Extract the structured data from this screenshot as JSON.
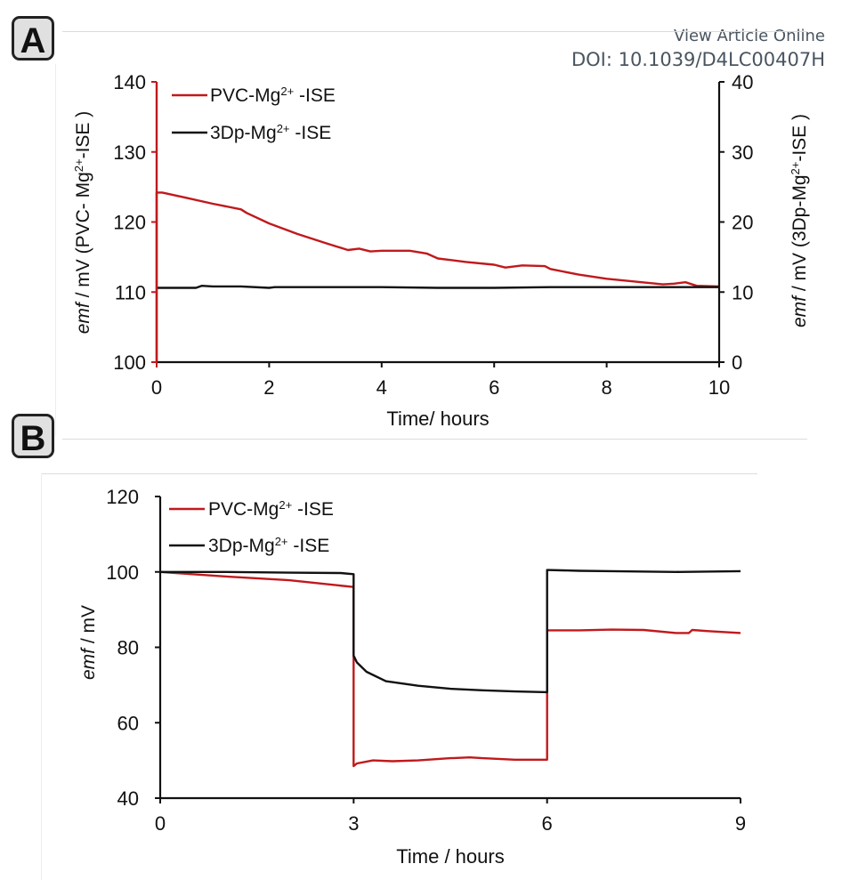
{
  "header": {
    "view_article": "View Article Online",
    "doi": "DOI: 10.1039/D4LC00407H"
  },
  "panels": {
    "a_label": "A",
    "b_label": "B"
  },
  "colors": {
    "pvc": "#c0191c",
    "dp3": "#111111",
    "doi_text": "#4a5560"
  },
  "chart_data": [
    {
      "type": "line",
      "panel": "A",
      "xlabel": "Time/ hours",
      "ylabel_left": "emf / mV (PVC- Mg2+-ISE )",
      "ylabel_left_parts": {
        "italic": "emf",
        "pre": " / mV (PVC- Mg",
        "sup": "2+",
        "post": "-ISE )"
      },
      "ylabel_right": "emf / mV (3Dp-Mg2+-ISE )",
      "ylabel_right_parts": {
        "italic": "emf",
        "pre": " / mV (3Dp-Mg",
        "sup": "2+",
        "post": "-ISE )"
      },
      "xlim": [
        0,
        10
      ],
      "ylim_left": [
        100,
        140
      ],
      "ylim_right": [
        0,
        40
      ],
      "x_ticks": [
        "0",
        "2",
        "4",
        "6",
        "8",
        "10"
      ],
      "y_ticks_left": [
        "100",
        "110",
        "120",
        "130",
        "140"
      ],
      "y_ticks_right": [
        "0",
        "10",
        "20",
        "30",
        "40"
      ],
      "legend": [
        {
          "name": "PVC-Mg2+-ISE",
          "pre": "PVC-Mg",
          "sup": "2+",
          "post": " -ISE"
        },
        {
          "name": "3Dp-Mg2+-ISE",
          "pre": "3Dp-Mg",
          "sup": "2+",
          "post": " -ISE"
        }
      ],
      "legend_position": "top-left",
      "grid": false,
      "series": [
        {
          "name": "PVC-Mg2+-ISE",
          "axis": "left",
          "x": [
            0,
            0,
            0.1,
            0.5,
            1.0,
            1.5,
            1.6,
            2.0,
            2.5,
            3.0,
            3.4,
            3.6,
            3.8,
            4.0,
            4.5,
            4.8,
            5.0,
            5.5,
            6.0,
            6.2,
            6.5,
            6.9,
            7.0,
            7.5,
            8.0,
            8.5,
            9.0,
            9.2,
            9.4,
            9.6,
            10.0
          ],
          "y": [
            100,
            124.2,
            124.2,
            123.5,
            122.6,
            121.8,
            121.3,
            119.8,
            118.3,
            117.0,
            116.0,
            116.2,
            115.8,
            115.9,
            115.9,
            115.5,
            114.8,
            114.3,
            113.9,
            113.5,
            113.8,
            113.7,
            113.3,
            112.5,
            111.9,
            111.5,
            111.1,
            111.2,
            111.4,
            110.9,
            110.8
          ]
        },
        {
          "name": "3Dp-Mg2+-ISE",
          "axis": "right",
          "x": [
            0,
            0.7,
            0.8,
            1.0,
            1.5,
            2.0,
            2.1,
            3.0,
            4.0,
            5.0,
            6.0,
            7.0,
            8.0,
            9.0,
            10.0
          ],
          "y": [
            10.6,
            10.6,
            10.9,
            10.8,
            10.8,
            10.6,
            10.7,
            10.7,
            10.7,
            10.6,
            10.6,
            10.7,
            10.7,
            10.7,
            10.7
          ]
        }
      ]
    },
    {
      "type": "line",
      "panel": "B",
      "xlabel": "Time / hours",
      "ylabel": "emf / mV",
      "ylabel_parts": {
        "italic": "emf",
        "rest": " / mV"
      },
      "xlim": [
        0,
        9
      ],
      "ylim": [
        40,
        120
      ],
      "x_ticks": [
        "0",
        "3",
        "6",
        "9"
      ],
      "y_ticks": [
        "40",
        "60",
        "80",
        "100",
        "120"
      ],
      "legend": [
        {
          "name": "PVC-Mg2+-ISE",
          "pre": "PVC-Mg",
          "sup": "2+",
          "post": " -ISE"
        },
        {
          "name": "3Dp-Mg2+-ISE",
          "pre": "3Dp-Mg",
          "sup": "2+",
          "post": " -ISE"
        }
      ],
      "legend_position": "top-left",
      "grid": false,
      "series": [
        {
          "name": "PVC-Mg2+-ISE",
          "x": [
            0,
            1.0,
            2.0,
            3.0,
            3.0,
            3.05,
            3.3,
            3.6,
            4.0,
            4.5,
            4.8,
            5.0,
            5.5,
            6.0,
            6.0,
            6.5,
            7.0,
            7.5,
            8.0,
            8.2,
            8.25,
            8.5,
            9.0
          ],
          "y": [
            100,
            98.8,
            97.8,
            96.0,
            48.5,
            49.2,
            50.0,
            49.8,
            50.0,
            50.6,
            50.8,
            50.6,
            50.2,
            50.2,
            84.5,
            84.5,
            84.7,
            84.6,
            83.8,
            83.8,
            84.6,
            84.3,
            83.8
          ]
        },
        {
          "name": "3Dp-Mg2+-ISE",
          "x": [
            0,
            1.0,
            2.0,
            2.8,
            3.0,
            3.0,
            3.05,
            3.2,
            3.5,
            4.0,
            4.5,
            5.0,
            5.5,
            6.0,
            6.0,
            6.5,
            7.0,
            8.0,
            9.0
          ],
          "y": [
            100,
            100,
            99.8,
            99.7,
            99.4,
            77.8,
            76.0,
            73.5,
            71.0,
            69.8,
            69.0,
            68.6,
            68.3,
            68.1,
            100.5,
            100.3,
            100.2,
            100.0,
            100.2
          ]
        }
      ]
    }
  ]
}
